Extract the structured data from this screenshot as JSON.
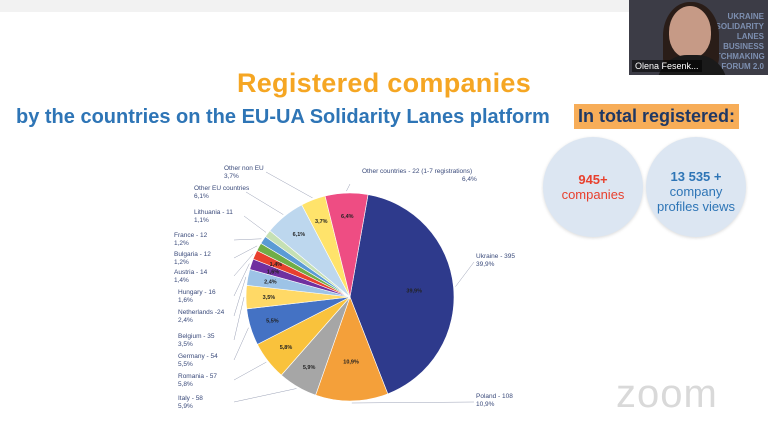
{
  "slide": {
    "title": "Registered companies",
    "subtitle": "by the countries on the EU-UA Solidarity Lanes platform",
    "total_label": "In total registered:",
    "stat1": {
      "number": "945+",
      "text": "companies"
    },
    "stat2": {
      "number": "13 535 +",
      "line1": "company",
      "line2": "profiles views"
    }
  },
  "participant": {
    "name": "Olena Fesenk...",
    "background_text": "UKRAINE SOLIDARITY LANES BUSINESS MATCHMAKING FORUM 2.0"
  },
  "watermark": "zoom",
  "colors": {
    "title": "#f5a623",
    "subtitle": "#2e75b6",
    "stat1": "#e8402e",
    "stat2": "#2e75b6",
    "highlight": "#f7ad58"
  },
  "chart_data": {
    "type": "pie",
    "slices": [
      {
        "name": "Ukraine",
        "value": 39.9,
        "label": "Ukraine - 395",
        "pct": "39,9%",
        "color": "#2e3a8c"
      },
      {
        "name": "Poland",
        "value": 10.9,
        "label": "Poland - 108",
        "pct": "10,9%",
        "color": "#f4a03a"
      },
      {
        "name": "Italy",
        "value": 5.9,
        "label": "Italy - 58",
        "pct": "5,9%",
        "color": "#a6a6a6"
      },
      {
        "name": "Romania",
        "value": 5.8,
        "label": "Romania - 57",
        "pct": "5,8%",
        "color": "#f9c23c"
      },
      {
        "name": "Germany",
        "value": 5.5,
        "label": "Germany - 54",
        "pct": "5,5%",
        "color": "#4472c4"
      },
      {
        "name": "Belgium",
        "value": 3.5,
        "label": "Belgium - 35",
        "pct": "3,5%",
        "color": "#ffd966"
      },
      {
        "name": "Netherlands",
        "value": 2.4,
        "label": "Netherlands -24",
        "pct": "2,4%",
        "color": "#9dc3e6"
      },
      {
        "name": "Hungary",
        "value": 1.6,
        "label": "Hungary - 16",
        "pct": "1,6%",
        "color": "#7030a0"
      },
      {
        "name": "Austria",
        "value": 1.4,
        "label": "Austria - 14",
        "pct": "1,4%",
        "color": "#e8402e"
      },
      {
        "name": "Bulgaria",
        "value": 1.2,
        "label": "Bulgaria - 12",
        "pct": "1,2%",
        "color": "#70ad47"
      },
      {
        "name": "France",
        "value": 1.2,
        "label": "France - 12",
        "pct": "1,2%",
        "color": "#5b9bd5"
      },
      {
        "name": "Lithuania",
        "value": 1.1,
        "label": "Lithuania - 11",
        "pct": "1,1%",
        "color": "#c5e0b4"
      },
      {
        "name": "Other EU countries",
        "value": 6.1,
        "label": "Other EU countries",
        "pct": "6,1%",
        "color": "#bdd7ee"
      },
      {
        "name": "Other non EU",
        "value": 3.7,
        "label": "Other non EU",
        "pct": "3,7%",
        "color": "#ffe36b"
      },
      {
        "name": "Other countries",
        "value": 6.4,
        "label": "Other countries - 22 (1-7 registrations)",
        "pct": "6,4%",
        "color": "#ee4d83"
      }
    ],
    "inner_labels": [
      "39,9%",
      "10,9%",
      "5,9%",
      "5,8%",
      "5,5%",
      "3,5%",
      "2,4%",
      "1,6%",
      "1,4%",
      "",
      "",
      "",
      "6,1%",
      "3,7%",
      "6,4%"
    ]
  }
}
